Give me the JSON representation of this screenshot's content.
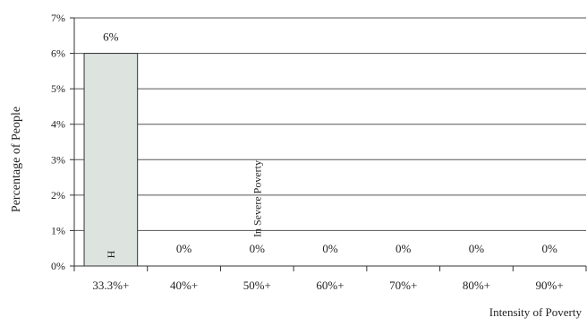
{
  "chart_data": {
    "type": "bar",
    "categories": [
      "33.3%+",
      "40%+",
      "50%+",
      "60%+",
      "70%+",
      "80%+",
      "90%+"
    ],
    "values": [
      6,
      0,
      0,
      0,
      0,
      0,
      0
    ],
    "data_labels": [
      "6%",
      "0%",
      "0%",
      "0%",
      "0%",
      "0%",
      "0%"
    ],
    "in_bar_labels": [
      "H",
      "",
      "",
      "",
      "",
      "",
      ""
    ],
    "annotation": "In Severe Poverty",
    "xlabel": "Intensity of Poverty",
    "ylabel": "Percentage of People",
    "ylim": [
      0,
      7
    ],
    "yticks": [
      "0%",
      "1%",
      "2%",
      "3%",
      "4%",
      "5%",
      "6%",
      "7%"
    ],
    "grid": true,
    "bar_color": "#dde3df",
    "bar_stroke": "#333333"
  }
}
